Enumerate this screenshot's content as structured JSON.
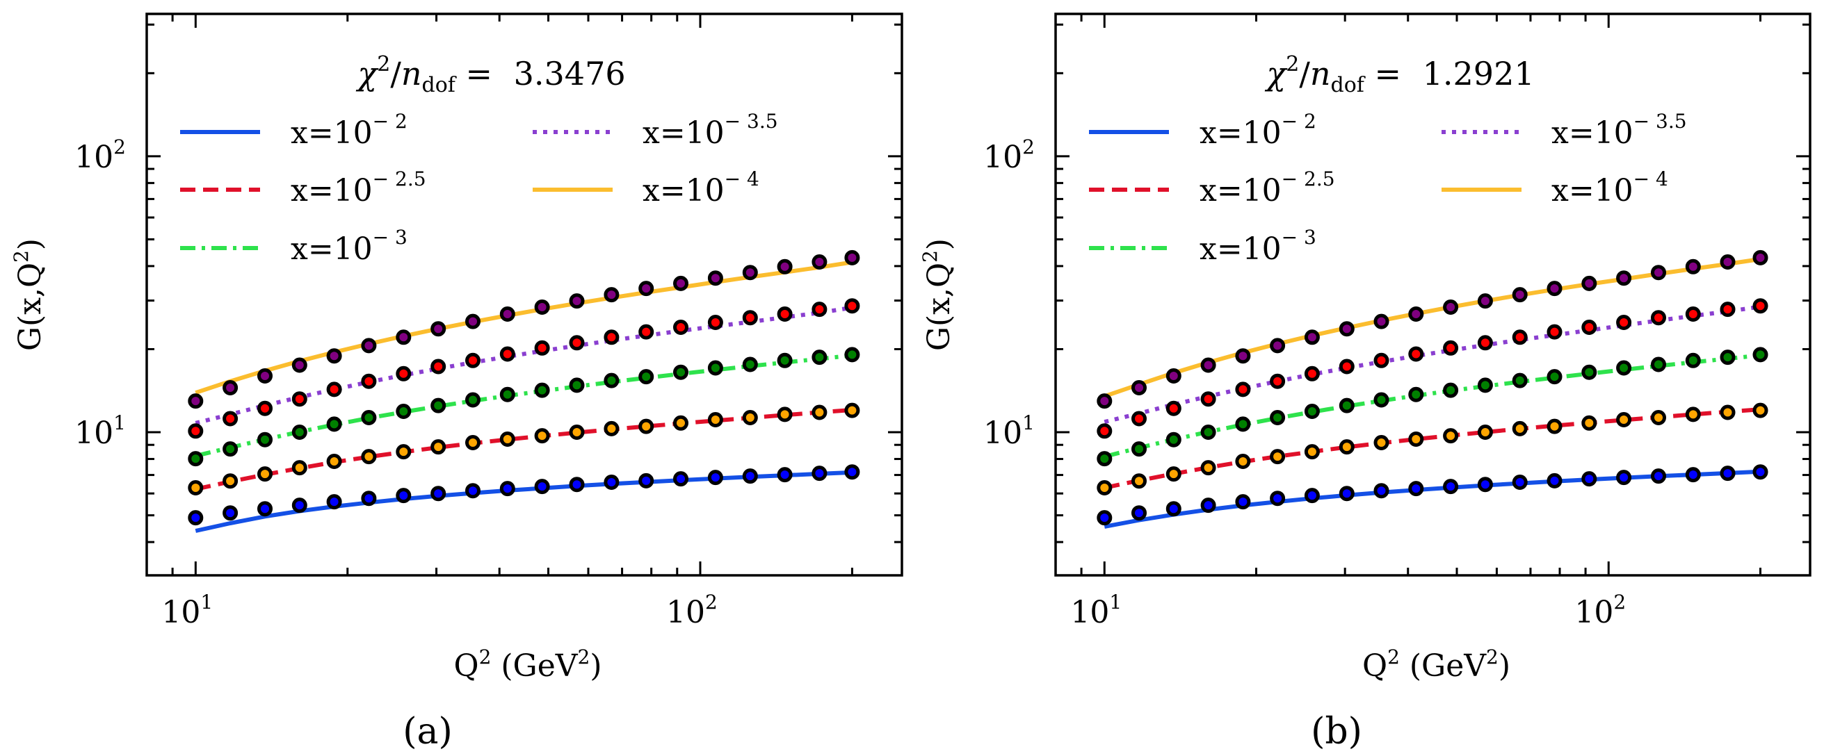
{
  "figure": {
    "panel_labels": [
      "(a)",
      "(b)"
    ]
  },
  "chart_data": [
    {
      "type": "line",
      "panel": "(a)",
      "title": "χ²/n_dof = 3.3476",
      "title_parts": {
        "lhs": "χ",
        "sup": "2",
        "slash": "/",
        "n": "n",
        "sub": "dof",
        "eq": " = ",
        "value": "3.3476"
      },
      "xlabel": "Q² (GeV²)",
      "xlabel_parts": {
        "q": "Q",
        "qsup": "2",
        "unit_open": " (GeV",
        "unit_sup": "2",
        "unit_close": ")"
      },
      "ylabel": "G(x,Q²)",
      "ylabel_parts": {
        "base": "G(x,Q",
        "sup": "2",
        "close": ")"
      },
      "xscale": "log",
      "yscale": "log",
      "xlim": [
        8,
        251
      ],
      "ylim": [
        3.03,
        328
      ],
      "xticks": [
        {
          "value": 10,
          "label_base": "10",
          "label_exp": "1"
        },
        {
          "value": 100,
          "label_base": "10",
          "label_exp": "2"
        }
      ],
      "yticks": [
        {
          "value": 10,
          "label_base": "10",
          "label_exp": "1"
        },
        {
          "value": 100,
          "label_base": "10",
          "label_exp": "2"
        }
      ],
      "grid": false,
      "legend": {
        "placement": "upper-center",
        "columns": 2
      },
      "x": [
        10.0,
        11.71,
        13.72,
        16.07,
        18.82,
        22.04,
        25.82,
        30.25,
        35.43,
        41.5,
        48.61,
        56.94,
        66.7,
        78.13,
        91.51,
        107.2,
        125.6,
        147.1,
        172.3,
        200.0
      ],
      "series": [
        {
          "name": "x=10^-2",
          "label_base": "x=10",
          "label_exp": "− 2",
          "color": "#1450e6",
          "dash": "solid",
          "marker_face": "#0000ff",
          "data": [
            4.9,
            5.1,
            5.28,
            5.44,
            5.6,
            5.76,
            5.9,
            6.0,
            6.14,
            6.25,
            6.36,
            6.47,
            6.59,
            6.67,
            6.78,
            6.86,
            6.94,
            7.02,
            7.1,
            7.18
          ],
          "model": [
            4.39,
            4.68,
            4.95,
            5.18,
            5.38,
            5.56,
            5.73,
            5.88,
            6.02,
            6.15,
            6.27,
            6.39,
            6.5,
            6.6,
            6.7,
            6.8,
            6.89,
            6.98,
            7.07,
            7.15
          ]
        },
        {
          "name": "x=10^-2.5",
          "label_base": "x=10",
          "label_exp": "− 2.5",
          "color": "#e0102a",
          "dash": "dashed",
          "marker_face": "#ffa500",
          "data": [
            6.29,
            6.66,
            7.06,
            7.44,
            7.84,
            8.16,
            8.5,
            8.85,
            9.17,
            9.44,
            9.71,
            10.0,
            10.3,
            10.5,
            10.8,
            11.1,
            11.3,
            11.6,
            11.8,
            12.0
          ],
          "model": [
            6.22,
            6.62,
            7.02,
            7.41,
            7.79,
            8.14,
            8.48,
            8.81,
            9.12,
            9.41,
            9.69,
            9.97,
            10.24,
            10.5,
            10.76,
            11.02,
            11.28,
            11.54,
            11.8,
            12.05
          ]
        },
        {
          "name": "x=10^-3",
          "label_base": "x=10",
          "label_exp": "− 3",
          "color": "#2ee24c",
          "dash": "dashdot",
          "marker_face": "#008000",
          "data": [
            8.02,
            8.7,
            9.4,
            10.0,
            10.7,
            11.3,
            11.9,
            12.5,
            13.1,
            13.7,
            14.2,
            14.8,
            15.4,
            15.9,
            16.5,
            17.1,
            17.6,
            18.2,
            18.7,
            19.1
          ],
          "model": [
            8.21,
            8.8,
            9.42,
            10.03,
            10.65,
            11.25,
            11.84,
            12.42,
            12.99,
            13.55,
            14.1,
            14.65,
            15.2,
            15.74,
            16.28,
            16.82,
            17.36,
            17.9,
            18.44,
            18.98
          ]
        },
        {
          "name": "x=10^-3.5",
          "label_base": "x=10",
          "label_exp": "− 3.5",
          "color": "#8a3fd0",
          "dash": "dotted",
          "marker_face": "#ff0000",
          "data": [
            10.1,
            11.2,
            12.2,
            13.2,
            14.3,
            15.3,
            16.3,
            17.3,
            18.2,
            19.2,
            20.2,
            21.1,
            22.1,
            23.1,
            24.0,
            25.0,
            26.0,
            26.8,
            27.9,
            28.7
          ],
          "model": [
            10.8,
            11.6,
            12.5,
            13.4,
            14.3,
            15.2,
            16.1,
            17.0,
            17.9,
            18.8,
            19.7,
            20.6,
            21.5,
            22.4,
            23.3,
            24.2,
            25.1,
            26.1,
            27.1,
            28.3
          ]
        },
        {
          "name": "x=10^-4",
          "label_base": "x=10",
          "label_exp": "− 4",
          "color": "#fbbd2e",
          "dash": "solid",
          "marker_face": "#800080",
          "data": [
            12.98,
            14.5,
            16.0,
            17.5,
            18.9,
            20.6,
            22.1,
            23.7,
            25.2,
            26.8,
            28.4,
            29.9,
            31.5,
            33.2,
            34.6,
            36.2,
            37.9,
            39.8,
            41.4,
            42.9
          ],
          "model": [
            13.9,
            15.3,
            16.7,
            18.1,
            19.5,
            20.9,
            22.3,
            23.7,
            25.1,
            26.5,
            27.9,
            29.3,
            30.7,
            32.1,
            33.5,
            35.0,
            36.5,
            38.0,
            39.6,
            41.3
          ]
        }
      ]
    },
    {
      "type": "line",
      "panel": "(b)",
      "title": "χ²/n_dof = 1.2921",
      "title_parts": {
        "lhs": "χ",
        "sup": "2",
        "slash": "/",
        "n": "n",
        "sub": "dof",
        "eq": " = ",
        "value": "1.2921"
      },
      "xlabel": "Q² (GeV²)",
      "xlabel_parts": {
        "q": "Q",
        "qsup": "2",
        "unit_open": " (GeV",
        "unit_sup": "2",
        "unit_close": ")"
      },
      "ylabel": "G(x,Q²)",
      "ylabel_parts": {
        "base": "G(x,Q",
        "sup": "2",
        "close": ")"
      },
      "xscale": "log",
      "yscale": "log",
      "xlim": [
        8,
        251
      ],
      "ylim": [
        3.03,
        328
      ],
      "xticks": [
        {
          "value": 10,
          "label_base": "10",
          "label_exp": "1"
        },
        {
          "value": 100,
          "label_base": "10",
          "label_exp": "2"
        }
      ],
      "yticks": [
        {
          "value": 10,
          "label_base": "10",
          "label_exp": "1"
        },
        {
          "value": 100,
          "label_base": "10",
          "label_exp": "2"
        }
      ],
      "grid": false,
      "legend": {
        "placement": "upper-center",
        "columns": 2
      },
      "x": [
        10.0,
        11.71,
        13.72,
        16.07,
        18.82,
        22.04,
        25.82,
        30.25,
        35.43,
        41.5,
        48.61,
        56.94,
        66.7,
        78.13,
        91.51,
        107.2,
        125.6,
        147.1,
        172.3,
        200.0
      ],
      "series": [
        {
          "name": "x=10^-2",
          "label_base": "x=10",
          "label_exp": "− 2",
          "color": "#1450e6",
          "dash": "solid",
          "marker_face": "#0000ff",
          "data": [
            4.9,
            5.1,
            5.28,
            5.44,
            5.6,
            5.76,
            5.9,
            6.0,
            6.14,
            6.25,
            6.36,
            6.47,
            6.59,
            6.67,
            6.78,
            6.86,
            6.94,
            7.02,
            7.1,
            7.18
          ],
          "model": [
            4.55,
            4.8,
            5.03,
            5.24,
            5.43,
            5.6,
            5.76,
            5.91,
            6.05,
            6.18,
            6.3,
            6.42,
            6.53,
            6.64,
            6.74,
            6.84,
            6.93,
            7.02,
            7.11,
            7.2
          ]
        },
        {
          "name": "x=10^-2.5",
          "label_base": "x=10",
          "label_exp": "− 2.5",
          "color": "#e0102a",
          "dash": "dashed",
          "marker_face": "#ffa500",
          "data": [
            6.29,
            6.66,
            7.06,
            7.44,
            7.84,
            8.16,
            8.5,
            8.85,
            9.17,
            9.44,
            9.71,
            10.0,
            10.3,
            10.5,
            10.8,
            11.1,
            11.3,
            11.6,
            11.8,
            12.0
          ],
          "model": [
            6.29,
            6.68,
            7.07,
            7.45,
            7.82,
            8.17,
            8.5,
            8.83,
            9.14,
            9.44,
            9.73,
            10.01,
            10.29,
            10.56,
            10.82,
            11.08,
            11.34,
            11.6,
            11.86,
            12.1
          ]
        },
        {
          "name": "x=10^-3",
          "label_base": "x=10",
          "label_exp": "− 3",
          "color": "#2ee24c",
          "dash": "dashdot",
          "marker_face": "#008000",
          "data": [
            8.02,
            8.7,
            9.4,
            10.0,
            10.7,
            11.3,
            11.9,
            12.5,
            13.1,
            13.7,
            14.2,
            14.8,
            15.4,
            15.9,
            16.5,
            17.1,
            17.6,
            18.2,
            18.7,
            19.1
          ],
          "model": [
            8.16,
            8.78,
            9.41,
            10.03,
            10.65,
            11.25,
            11.84,
            12.43,
            13.0,
            13.57,
            14.13,
            14.68,
            15.23,
            15.77,
            16.31,
            16.85,
            17.39,
            17.93,
            18.47,
            19.0
          ]
        },
        {
          "name": "x=10^-3.5",
          "label_base": "x=10",
          "label_exp": "− 3.5",
          "color": "#8a3fd0",
          "dash": "dotted",
          "marker_face": "#ff0000",
          "data": [
            10.1,
            11.2,
            12.2,
            13.2,
            14.3,
            15.3,
            16.3,
            17.3,
            18.2,
            19.2,
            20.2,
            21.1,
            22.1,
            23.1,
            24.0,
            25.0,
            26.0,
            26.8,
            27.9,
            28.7
          ],
          "model": [
            10.9,
            11.7,
            12.6,
            13.5,
            14.4,
            15.3,
            16.2,
            17.1,
            18.0,
            18.9,
            19.8,
            20.7,
            21.6,
            22.5,
            23.4,
            24.4,
            25.4,
            26.4,
            27.4,
            28.5
          ]
        },
        {
          "name": "x=10^-4",
          "label_base": "x=10",
          "label_exp": "− 4",
          "color": "#fbbd2e",
          "dash": "solid",
          "marker_face": "#800080",
          "data": [
            12.98,
            14.5,
            16.0,
            17.5,
            18.9,
            20.6,
            22.1,
            23.7,
            25.2,
            26.8,
            28.4,
            29.9,
            31.5,
            33.2,
            34.6,
            36.2,
            37.9,
            39.8,
            41.4,
            42.9
          ],
          "model": [
            13.5,
            14.9,
            16.4,
            17.9,
            19.4,
            20.9,
            22.4,
            23.9,
            25.4,
            26.9,
            28.4,
            29.9,
            31.4,
            32.9,
            34.4,
            35.9,
            37.5,
            39.1,
            40.7,
            42.4
          ]
        }
      ]
    }
  ]
}
